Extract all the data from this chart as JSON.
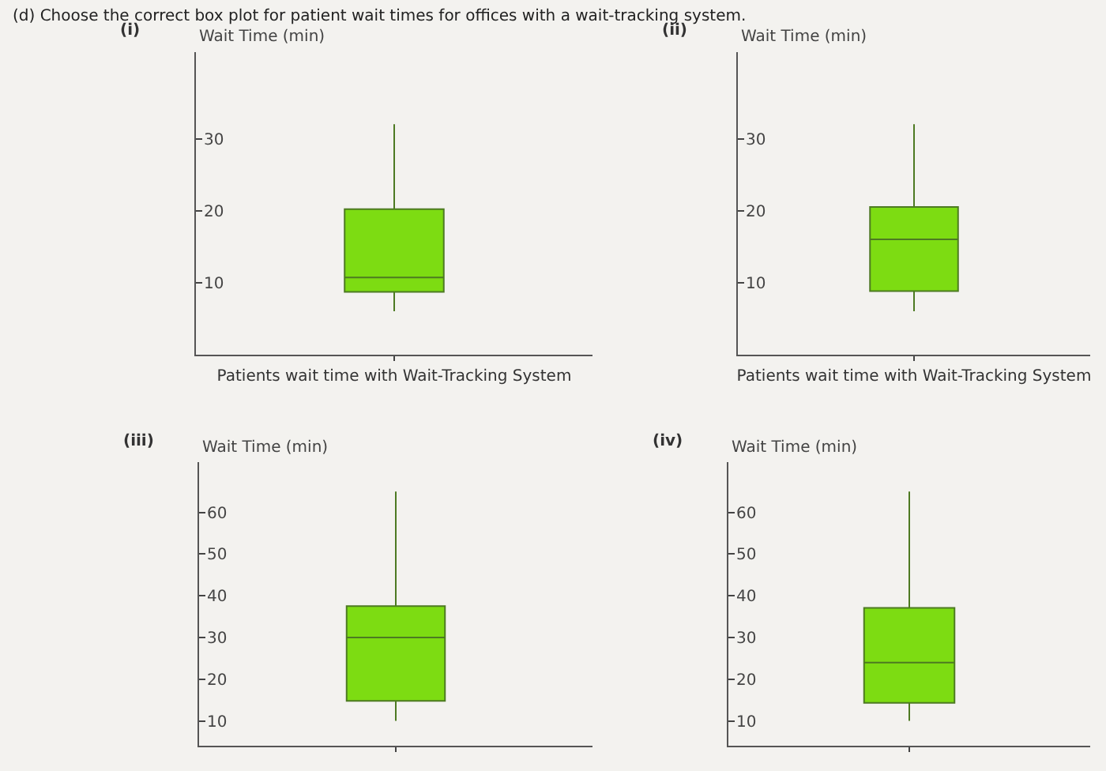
{
  "chart_data": [
    {
      "type": "box",
      "title": "(i)",
      "annotations": [
        "(d) Choose the correct box plot for patient wait times for offices with a wait-tracking system."
      ],
      "xlabel": "Patients wait time with Wait-Tracking System",
      "ylabel": "Wait Time (min)",
      "categories": [
        null
      ],
      "color": "#7ddc12",
      "ylim": [
        0,
        42
      ],
      "yticks": [
        10,
        20,
        30
      ],
      "grid": false,
      "tick_labels": "y",
      "boxes": [
        {
          "low": 6,
          "q1": 8.7,
          "median": 10.7,
          "q3": 20.2,
          "high": 32
        }
      ]
    },
    {
      "type": "box",
      "title": "(ii)",
      "xlabel": "Patients wait time with Wait-Tracking System",
      "ylabel": "Wait Time (min)",
      "categories": [
        null
      ],
      "color": "#7ddc12",
      "ylim": [
        0,
        42
      ],
      "yticks": [
        10,
        20,
        30
      ],
      "grid": false,
      "tick_labels": "y",
      "boxes": [
        {
          "low": 6,
          "q1": 8.8,
          "median": 16,
          "q3": 20.5,
          "high": 32
        }
      ]
    },
    {
      "type": "box",
      "title": "(iii)",
      "ylabel": "Wait Time (min)",
      "categories": [
        null
      ],
      "color": "#7ddc12",
      "ylim": [
        4,
        72
      ],
      "yticks": [
        10,
        20,
        30,
        40,
        50,
        60
      ],
      "grid": false,
      "tick_labels": "y",
      "boxes": [
        {
          "low": 10,
          "q1": 14.8,
          "median": 30,
          "q3": 37.5,
          "high": 65
        }
      ]
    },
    {
      "type": "box",
      "title": "(iv)",
      "ylabel": "Wait Time (min)",
      "categories": [
        null
      ],
      "color": "#7ddc12",
      "ylim": [
        4,
        72
      ],
      "yticks": [
        10,
        20,
        30,
        40,
        50,
        60
      ],
      "grid": false,
      "tick_labels": "y",
      "boxes": [
        {
          "low": 10,
          "q1": 14.3,
          "median": 24,
          "q3": 37.1,
          "high": 65
        }
      ]
    }
  ]
}
